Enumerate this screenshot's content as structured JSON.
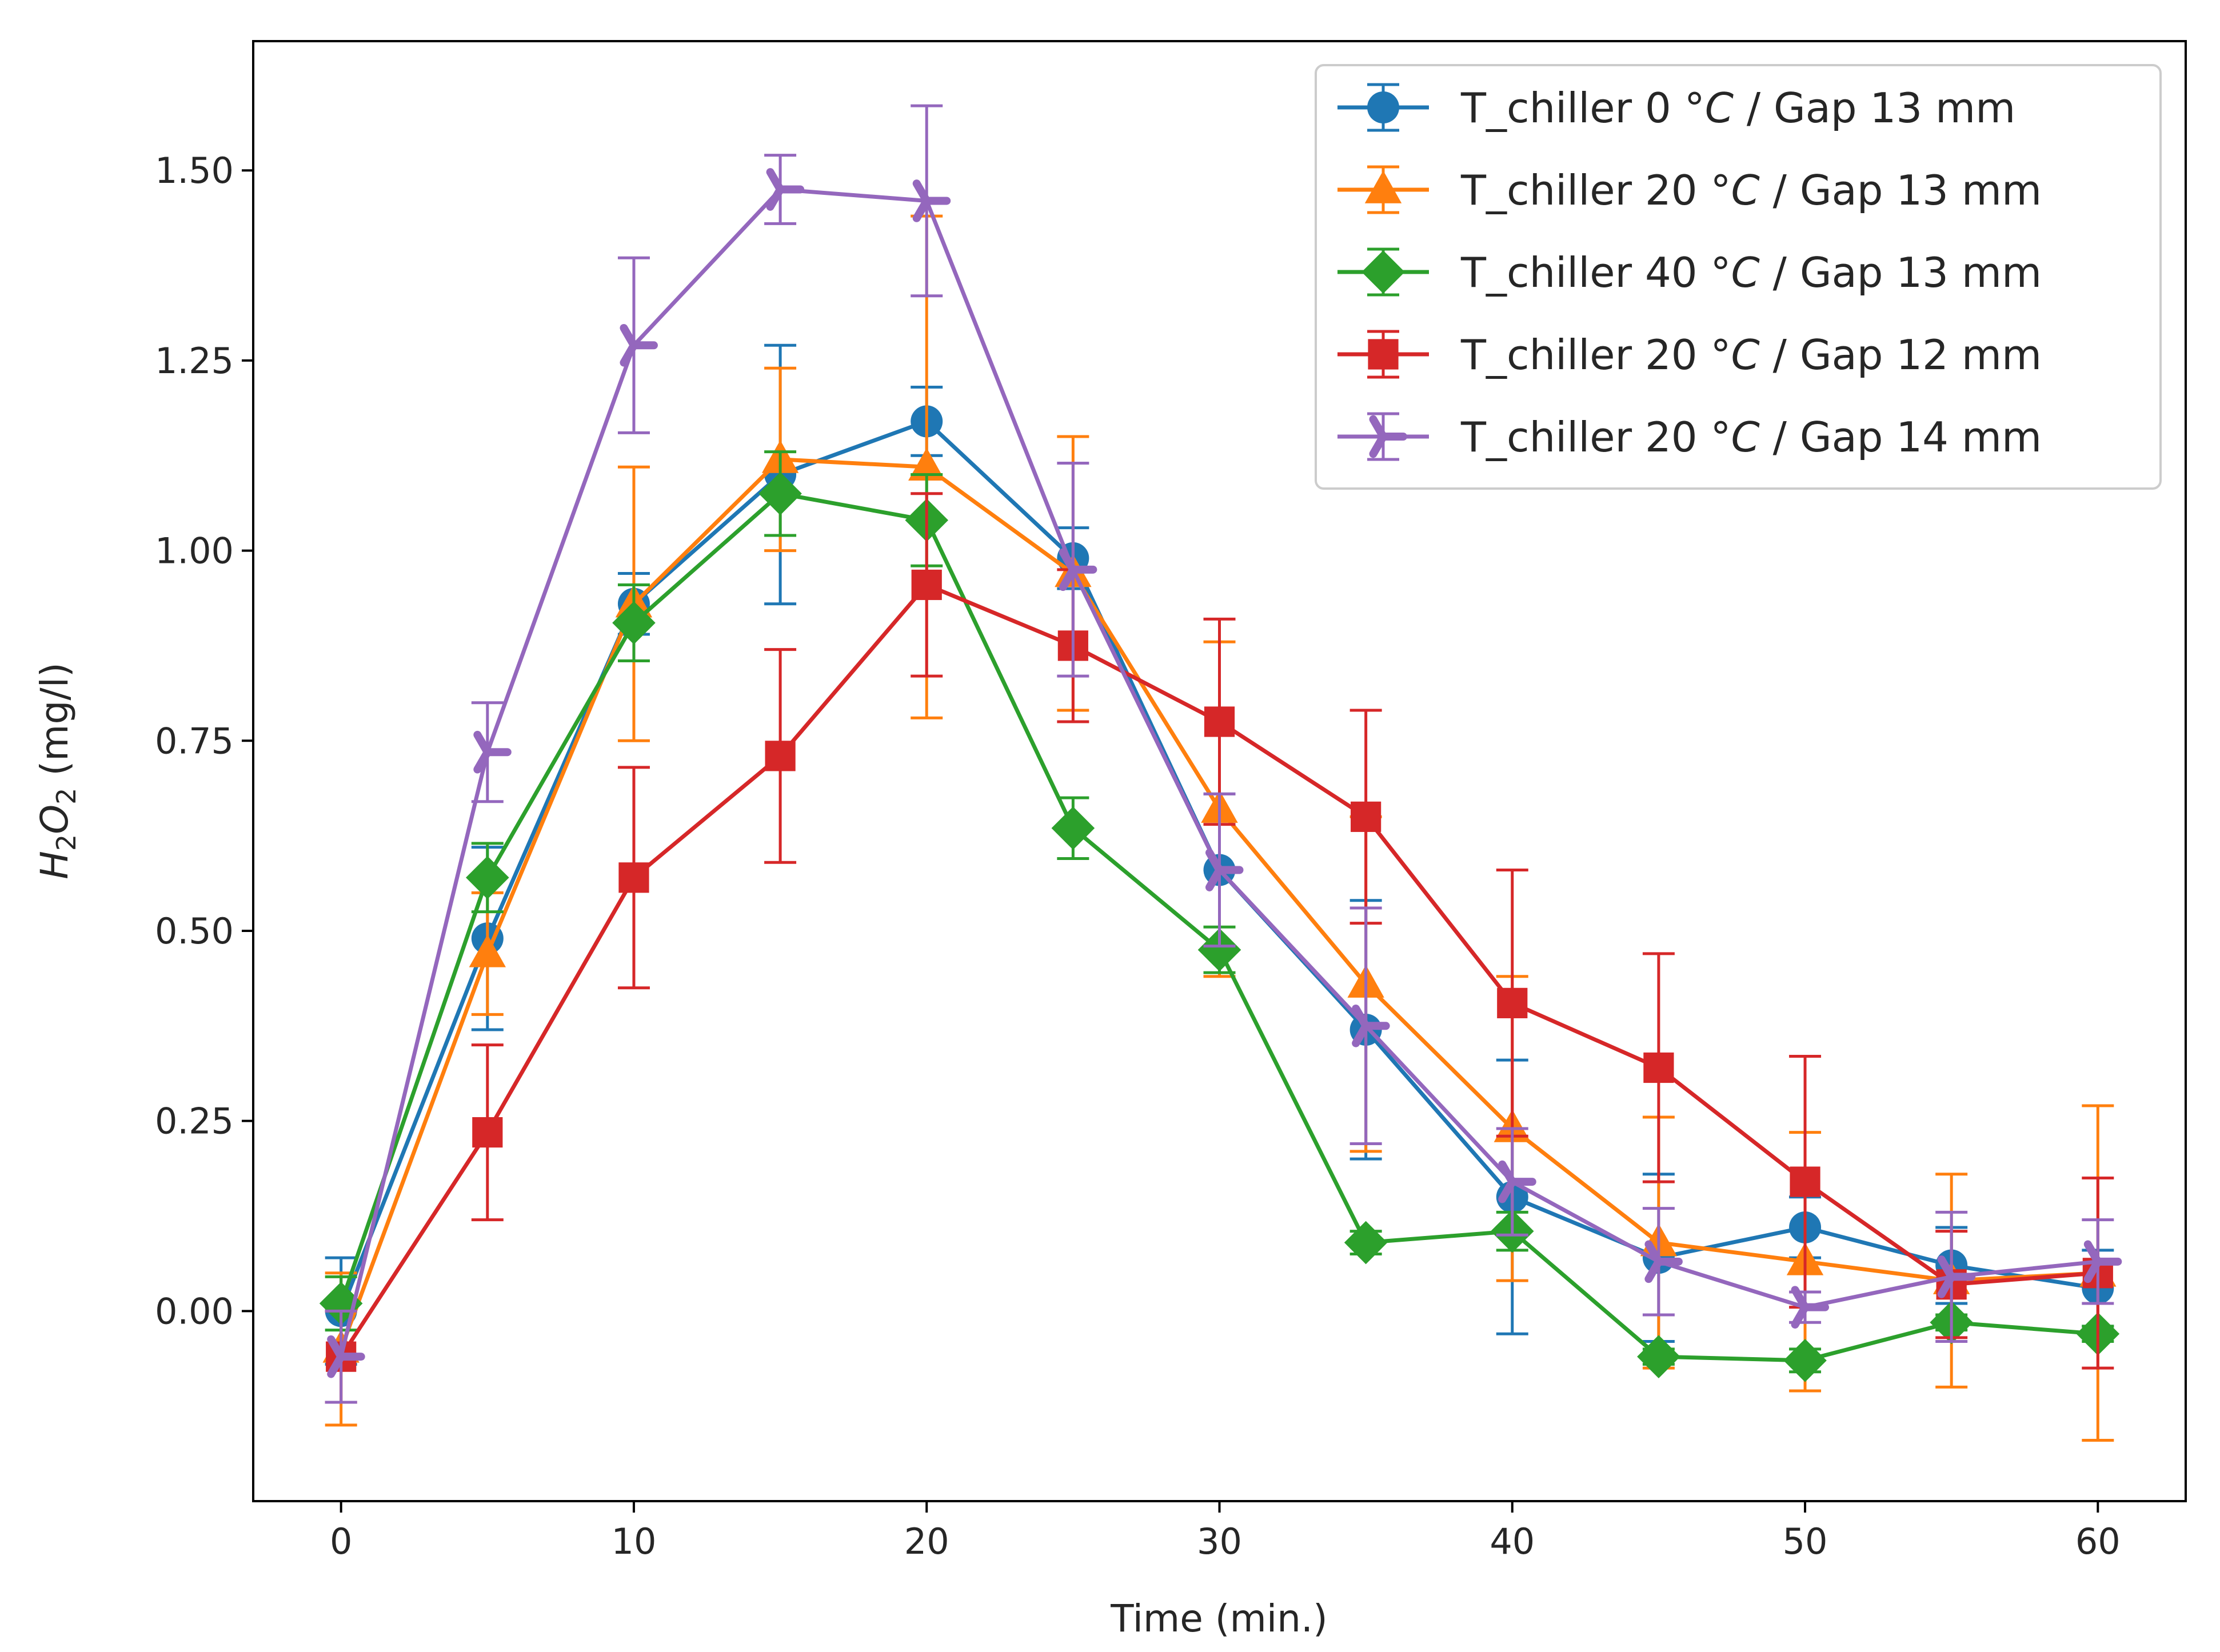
{
  "chart_data": {
    "type": "line",
    "title": "",
    "xlabel": "Time (min.)",
    "ylabel": "H2O2 (mg/l)",
    "ylabel_parts": {
      "h": "H",
      "sub1": "2",
      "o": "O",
      "sub2": "2",
      "unit": " (mg/l)"
    },
    "xlim": [
      -3,
      63
    ],
    "ylim": [
      -0.25,
      1.67
    ],
    "xticks": [
      0,
      10,
      20,
      30,
      40,
      50,
      60
    ],
    "xtick_labels": [
      "0",
      "10",
      "20",
      "30",
      "40",
      "50",
      "60"
    ],
    "yticks": [
      0.0,
      0.25,
      0.5,
      0.75,
      1.0,
      1.25,
      1.5
    ],
    "ytick_labels": [
      "0.00",
      "0.25",
      "0.50",
      "0.75",
      "1.00",
      "1.25",
      "1.50"
    ],
    "x": [
      0,
      5,
      10,
      15,
      20,
      25,
      30,
      35,
      40,
      45,
      50,
      55,
      60
    ],
    "legend_position": "upper right",
    "series": [
      {
        "name": "T_chiller 0 °C / Gap 13 mm",
        "legend_prefix": "T_chiller 0 ",
        "legend_unit": "°C",
        "legend_suffix": " / Gap 13 mm",
        "color": "#1f77b4",
        "marker": "circle",
        "values": [
          0.0,
          0.49,
          0.93,
          1.1,
          1.17,
          0.99,
          0.58,
          0.37,
          0.15,
          0.07,
          0.11,
          0.06,
          0.03
        ],
        "errors": [
          0.07,
          0.12,
          0.04,
          0.17,
          0.045,
          0.04,
          0.1,
          0.17,
          0.18,
          0.11,
          0.04,
          0.05,
          0.05
        ]
      },
      {
        "name": "T_chiller 20 °C / Gap 13 mm",
        "legend_prefix": "T_chiller 20 ",
        "legend_unit": "°C",
        "legend_suffix": " / Gap 13 mm",
        "color": "#ff7f0e",
        "marker": "triangle",
        "values": [
          -0.05,
          0.47,
          0.93,
          1.12,
          1.11,
          0.97,
          0.66,
          0.43,
          0.24,
          0.09,
          0.065,
          0.04,
          0.05
        ],
        "errors": [
          0.1,
          0.08,
          0.18,
          0.12,
          0.33,
          0.18,
          0.22,
          0.22,
          0.2,
          0.165,
          0.17,
          0.14,
          0.22
        ]
      },
      {
        "name": "T_chiller 40 °C / Gap 13 mm",
        "legend_prefix": "T_chiller 40 ",
        "legend_unit": "°C",
        "legend_suffix": " / Gap 13 mm",
        "color": "#2ca02c",
        "marker": "diamond",
        "values": [
          0.01,
          0.57,
          0.905,
          1.075,
          1.04,
          0.635,
          0.475,
          0.09,
          0.105,
          -0.06,
          -0.065,
          -0.015,
          -0.03
        ],
        "errors": [
          0.035,
          0.045,
          0.05,
          0.055,
          0.06,
          0.04,
          0.03,
          0.015,
          0.025,
          0.01,
          0.015,
          0.01,
          0.01
        ]
      },
      {
        "name": "T_chiller 20 °C / Gap 12 mm",
        "legend_prefix": "T_chiller 20 ",
        "legend_unit": "°C",
        "legend_suffix": " / Gap 12 mm",
        "color": "#d62728",
        "marker": "square",
        "values": [
          -0.06,
          0.235,
          0.57,
          0.73,
          0.955,
          0.875,
          0.775,
          0.65,
          0.405,
          0.32,
          0.17,
          0.035,
          0.05
        ],
        "errors": [
          0.06,
          0.115,
          0.145,
          0.14,
          0.12,
          0.1,
          0.135,
          0.14,
          0.175,
          0.15,
          0.165,
          0.07,
          0.125
        ]
      },
      {
        "name": "T_chiller 20 °C / Gap 14 mm",
        "legend_prefix": "T_chiller 20 ",
        "legend_unit": "°C",
        "legend_suffix": " / Gap 14 mm",
        "color": "#9467bd",
        "marker": "tri_right",
        "values": [
          -0.06,
          0.735,
          1.27,
          1.475,
          1.46,
          0.975,
          0.58,
          0.375,
          0.17,
          0.065,
          0.005,
          0.045,
          0.065
        ],
        "errors": [
          0.06,
          0.065,
          0.115,
          0.045,
          0.125,
          0.14,
          0.1,
          0.155,
          0.07,
          0.07,
          0.02,
          0.085,
          0.055
        ]
      }
    ]
  }
}
